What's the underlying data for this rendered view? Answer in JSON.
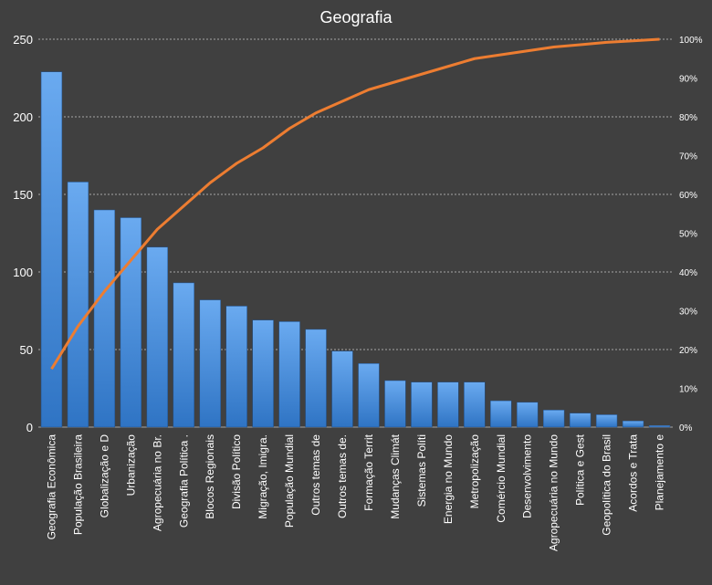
{
  "chart_data": {
    "type": "bar",
    "title": "Geografia",
    "categories": [
      "Geografia Econômica",
      "População Brasileira",
      "Globalização e D",
      "Urbanização",
      "Agropecuária no Br.",
      "Geografia Política .",
      "Blocos Regionais",
      "Divisão Político",
      "Migração, Imigra.",
      "População Mundial",
      "Outros temas de",
      "Outros temas de.",
      "Formação Territ",
      "Mudanças Climát",
      "Sistemas Políti",
      "Energia no Mundo",
      "Metropolização",
      "Comércio Mundial",
      "Desenvolvimento",
      "Agropecuária no Mundo",
      "Política e Gest",
      "Geopolítica do Brasil",
      "Acordos e Trata",
      "Planejamento e"
    ],
    "series": [
      {
        "type": "bar",
        "axis": "left",
        "values": [
          229,
          158,
          140,
          135,
          116,
          93,
          82,
          78,
          69,
          68,
          63,
          49,
          41,
          30,
          29,
          29,
          29,
          17,
          16,
          11,
          9,
          8,
          4,
          1
        ]
      },
      {
        "type": "line",
        "axis": "right",
        "values": [
          15,
          26,
          35,
          43,
          51,
          57,
          63,
          68,
          72,
          77,
          81,
          84,
          87,
          89,
          91,
          93,
          95,
          96,
          97,
          98,
          98.6,
          99.2,
          99.6,
          100
        ]
      }
    ],
    "ylim": [
      0,
      250
    ],
    "yticks": [
      "0",
      "50",
      "100",
      "150",
      "200",
      "250"
    ],
    "y2lim": [
      0,
      100
    ],
    "y2ticks": [
      "0%",
      "10%",
      "20%",
      "30%",
      "40%",
      "50%",
      "60%",
      "70%",
      "80%",
      "90%",
      "100%"
    ],
    "grid": true,
    "colors": {
      "background": "#404040",
      "bar_top": "#6aaaf0",
      "bar_bottom": "#2f74c4",
      "line": "#ed7d31",
      "grid": "#a6a6a6",
      "text": "#ffffff"
    }
  }
}
